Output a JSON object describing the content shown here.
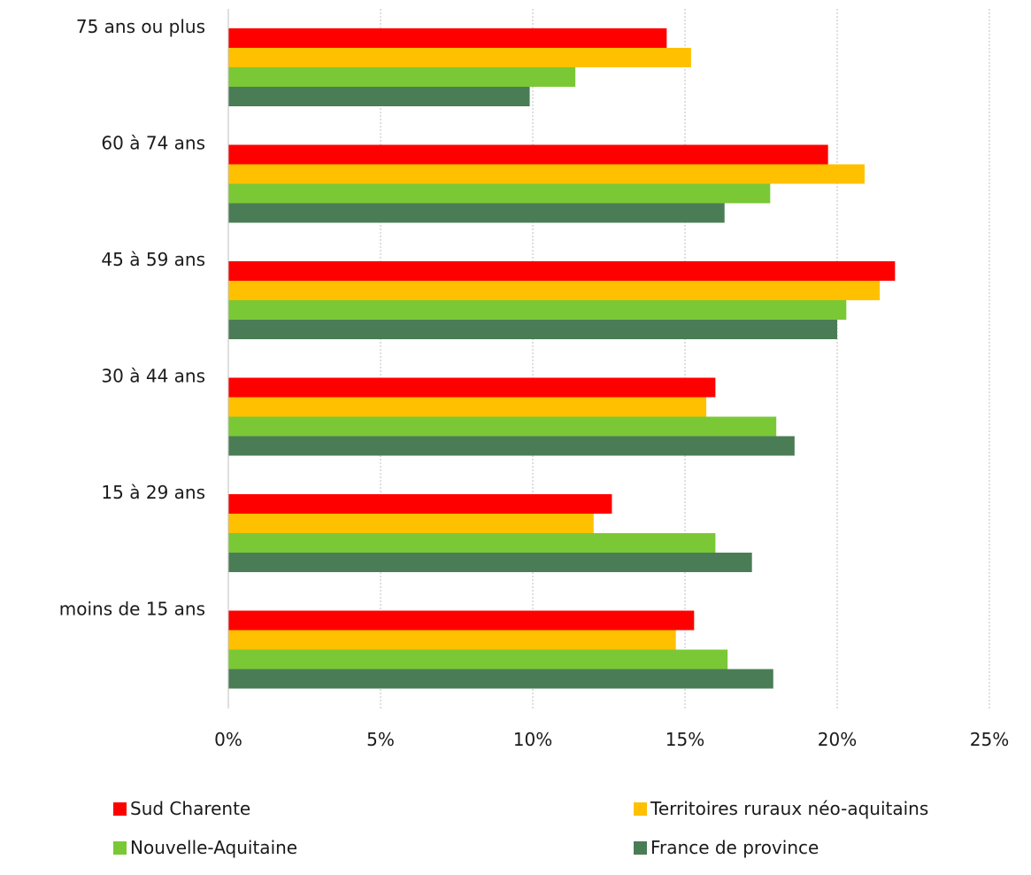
{
  "chart_data": {
    "type": "bar",
    "orientation": "horizontal",
    "title": "",
    "xlabel": "",
    "ylabel": "",
    "categories": [
      "75 ans ou plus",
      "60 à 74 ans",
      "45 à 59 ans",
      "30 à 44 ans",
      "15 à 29 ans",
      "moins de 15 ans"
    ],
    "series": [
      {
        "name": "Sud Charente",
        "color": "#ff0000",
        "values": [
          14.4,
          19.7,
          21.9,
          16.0,
          12.6,
          15.3
        ]
      },
      {
        "name": "Territoires ruraux néo-aquitains",
        "color": "#ffc000",
        "values": [
          15.2,
          20.9,
          21.4,
          15.7,
          12.0,
          14.7
        ]
      },
      {
        "name": "Nouvelle-Aquitaine",
        "color": "#7ac836",
        "values": [
          11.4,
          17.8,
          20.3,
          18.0,
          16.0,
          16.4
        ]
      },
      {
        "name": "France de province",
        "color": "#4a7d55",
        "values": [
          9.9,
          16.3,
          20.0,
          18.6,
          17.2,
          17.9
        ]
      }
    ],
    "xlim": [
      0,
      25
    ],
    "xticks": [
      0,
      5,
      10,
      15,
      20,
      25
    ],
    "tick_suffix": "%",
    "grid": "vertical dashed",
    "legend_position": "bottom"
  }
}
